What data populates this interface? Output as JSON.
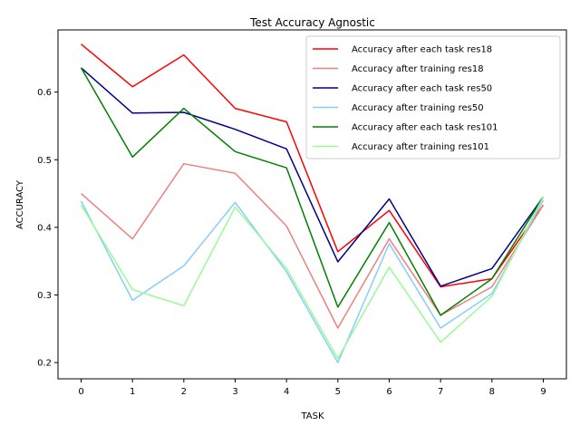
{
  "chart_data": {
    "type": "line",
    "title": "Test Accuracy Agnostic",
    "xlabel": "TASK",
    "ylabel": "ACCURACY",
    "x": [
      0,
      1,
      2,
      3,
      4,
      5,
      6,
      7,
      8,
      9
    ],
    "xticks": [
      "0",
      "1",
      "2",
      "3",
      "4",
      "5",
      "6",
      "7",
      "8",
      "9"
    ],
    "yticks": [
      "0.2",
      "0.3",
      "0.4",
      "0.5",
      "0.6"
    ],
    "xlim": [
      -0.45,
      9.45
    ],
    "ylim": [
      0.176,
      0.692
    ],
    "grid": false,
    "legend_position": "top-right",
    "series": [
      {
        "name": "Accuracy after each task res18",
        "color": "#ff0000",
        "values": [
          0.671,
          0.608,
          0.655,
          0.576,
          0.556,
          0.364,
          0.425,
          0.312,
          0.324,
          0.433
        ]
      },
      {
        "name": "Accuracy after training res18",
        "color": "#f08080",
        "values": [
          0.45,
          0.383,
          0.494,
          0.48,
          0.402,
          0.251,
          0.383,
          0.27,
          0.312,
          0.433
        ]
      },
      {
        "name": "Accuracy after each task res50",
        "color": "#00008b",
        "values": [
          0.636,
          0.569,
          0.57,
          0.545,
          0.516,
          0.349,
          0.442,
          0.313,
          0.339,
          0.445
        ]
      },
      {
        "name": "Accuracy after training res50",
        "color": "#87cefa",
        "values": [
          0.439,
          0.292,
          0.343,
          0.437,
          0.334,
          0.2,
          0.376,
          0.251,
          0.302,
          0.44
        ]
      },
      {
        "name": "Accuracy after each task res101",
        "color": "#008000",
        "values": [
          0.636,
          0.504,
          0.576,
          0.512,
          0.488,
          0.282,
          0.407,
          0.27,
          0.324,
          0.445
        ]
      },
      {
        "name": "Accuracy after training res101",
        "color": "#98fb98",
        "values": [
          0.433,
          0.308,
          0.284,
          0.43,
          0.339,
          0.206,
          0.341,
          0.23,
          0.298,
          0.445
        ]
      }
    ]
  }
}
